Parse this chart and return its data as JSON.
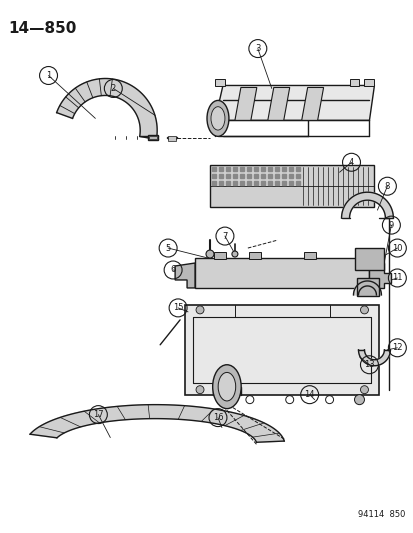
{
  "title": "14—850",
  "watermark": "94114  850",
  "bg": "#ffffff",
  "lc": "#1a1a1a",
  "fig_width": 4.14,
  "fig_height": 5.33,
  "dpi": 100
}
